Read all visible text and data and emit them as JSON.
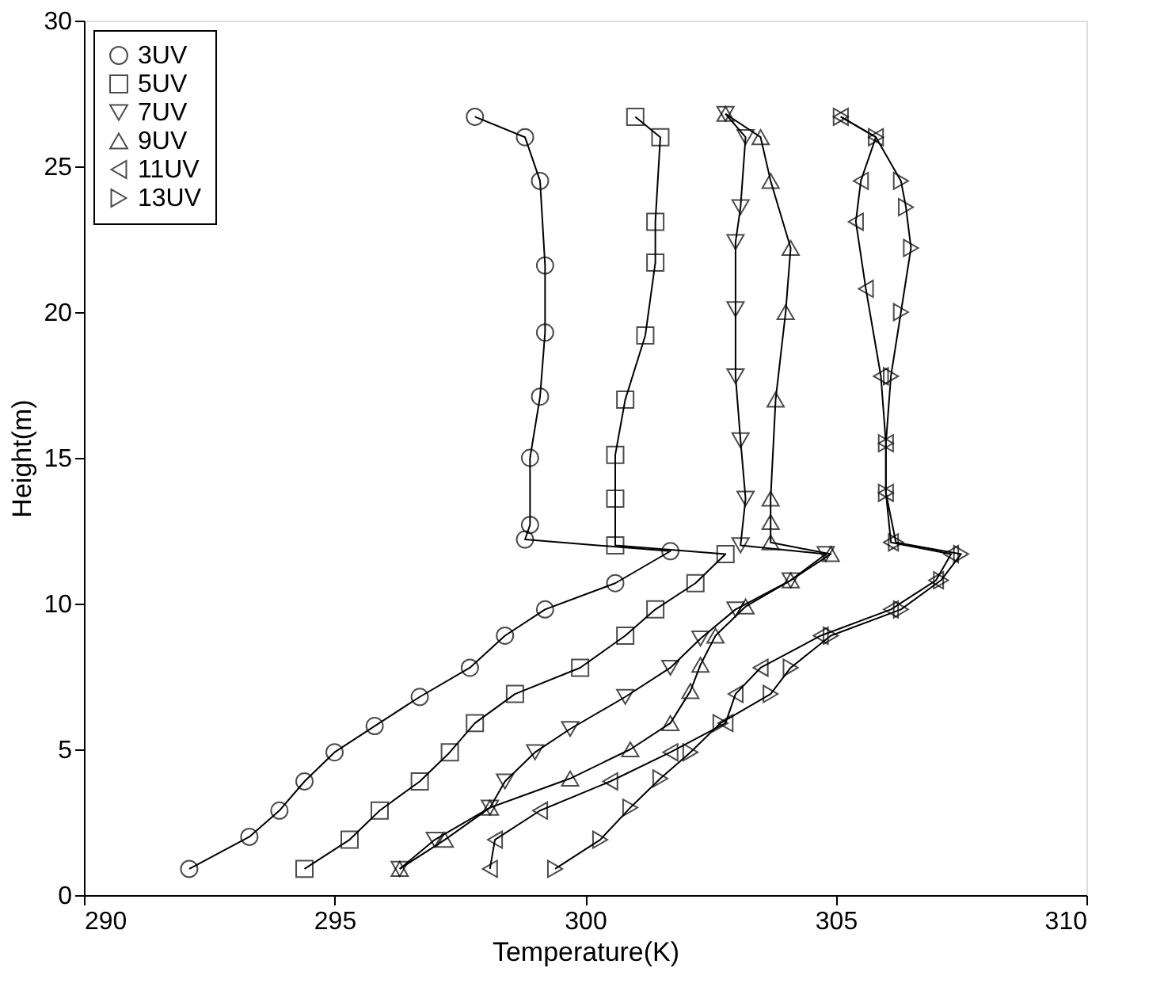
{
  "chart_data": {
    "type": "line",
    "xlabel": "Temperature(K)",
    "ylabel": "Height(m)",
    "xlim": [
      290,
      310
    ],
    "xticks": [
      290,
      295,
      300,
      305,
      310
    ],
    "ylim": [
      0,
      30
    ],
    "yticks": [
      0,
      5,
      10,
      15,
      20,
      25,
      30
    ],
    "grid": false,
    "legend": "top left",
    "line_style": "solid",
    "series": [
      {
        "name": "3UV",
        "color": "#000000",
        "marker": "circle",
        "x": [
          292.1,
          293.3,
          293.9,
          294.4,
          295.0,
          295.8,
          296.7,
          297.7,
          298.4,
          299.2,
          300.6,
          301.7,
          298.8,
          298.9,
          298.9,
          299.1,
          299.2,
          299.2,
          299.1,
          298.8,
          297.8
        ],
        "values": [
          0.9,
          2.0,
          2.9,
          3.9,
          4.9,
          5.8,
          6.8,
          7.8,
          8.9,
          9.8,
          10.7,
          11.8,
          12.2,
          12.7,
          15.0,
          17.1,
          19.3,
          21.6,
          24.5,
          26.0,
          26.7
        ]
      },
      {
        "name": "5UV",
        "color": "#000000",
        "marker": "square",
        "x": [
          294.4,
          295.3,
          295.9,
          296.7,
          297.3,
          297.8,
          298.6,
          299.9,
          300.8,
          301.4,
          302.2,
          302.8,
          300.6,
          300.6,
          300.6,
          300.8,
          301.2,
          301.4,
          301.4,
          301.5,
          301.0
        ],
        "values": [
          0.9,
          1.9,
          2.9,
          3.9,
          4.9,
          5.9,
          6.9,
          7.8,
          8.9,
          9.8,
          10.7,
          11.7,
          12.0,
          13.6,
          15.1,
          17.0,
          19.2,
          21.7,
          23.1,
          26.0,
          26.7
        ]
      },
      {
        "name": "7UV",
        "color": "#000000",
        "marker": "triangle-down",
        "x": [
          296.3,
          297.0,
          298.1,
          298.4,
          299.0,
          299.7,
          300.8,
          301.7,
          302.3,
          303.0,
          304.1,
          304.8,
          303.1,
          303.2,
          303.1,
          303.0,
          303.0,
          303.0,
          303.1,
          303.2,
          302.8
        ],
        "values": [
          0.9,
          1.9,
          3.0,
          3.9,
          4.9,
          5.7,
          6.8,
          7.8,
          8.8,
          9.8,
          10.8,
          11.7,
          12.0,
          13.6,
          15.6,
          17.8,
          20.1,
          22.4,
          23.6,
          26.0,
          26.8
        ]
      },
      {
        "name": "9UV",
        "color": "#000000",
        "marker": "triangle-up",
        "x": [
          296.3,
          297.2,
          298.1,
          299.7,
          300.9,
          301.7,
          302.1,
          302.3,
          302.6,
          303.2,
          304.1,
          304.9,
          303.7,
          303.7,
          303.7,
          303.8,
          304.0,
          304.1,
          303.7,
          303.5,
          302.8
        ],
        "values": [
          0.9,
          1.9,
          3.0,
          4.0,
          5.0,
          5.9,
          7.0,
          7.9,
          8.9,
          9.9,
          10.8,
          11.7,
          12.1,
          12.8,
          13.6,
          17.0,
          20.0,
          22.2,
          24.5,
          26.0,
          26.8
        ]
      },
      {
        "name": "11UV",
        "color": "#000000",
        "marker": "triangle-left",
        "x": [
          298.1,
          298.2,
          299.1,
          300.5,
          301.7,
          302.8,
          303.0,
          303.5,
          304.7,
          306.1,
          307.0,
          307.3,
          306.1,
          306.0,
          306.0,
          305.9,
          305.6,
          305.4,
          305.5,
          305.8,
          305.1
        ],
        "values": [
          0.9,
          1.9,
          2.9,
          3.9,
          4.9,
          5.9,
          6.9,
          7.8,
          8.9,
          9.8,
          10.8,
          11.7,
          12.1,
          13.8,
          15.5,
          17.8,
          20.8,
          23.1,
          24.5,
          26.0,
          26.7
        ]
      },
      {
        "name": "13UV",
        "color": "#000000",
        "marker": "triangle-right",
        "x": [
          299.4,
          300.3,
          300.9,
          301.5,
          302.1,
          302.7,
          303.7,
          304.1,
          304.9,
          306.3,
          307.1,
          307.5,
          306.2,
          306.0,
          306.0,
          306.1,
          306.3,
          306.5,
          306.4,
          306.3,
          305.8,
          305.1
        ],
        "values": [
          0.9,
          1.9,
          3.0,
          4.0,
          4.9,
          5.9,
          6.9,
          7.8,
          8.9,
          9.8,
          10.8,
          11.7,
          12.1,
          13.8,
          15.5,
          17.8,
          20.0,
          22.2,
          23.6,
          24.5,
          26.0,
          26.7
        ]
      }
    ]
  }
}
